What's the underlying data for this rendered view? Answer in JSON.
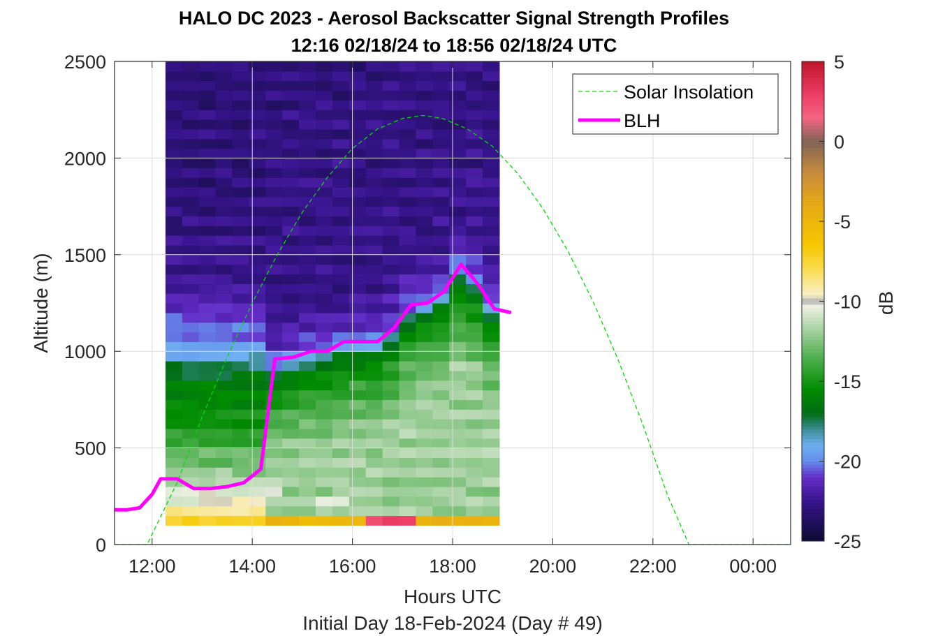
{
  "figure": {
    "title_line1": "HALO DC 2023 - Aerosol Backscatter Signal Strength Profiles",
    "title_line2": "12:16 02/18/24 to 18:56 02/18/24  UTC",
    "footer": "Initial Day 18-Feb-2024 (Day # 49)"
  },
  "chart_data": {
    "type": "heatmap",
    "xlabel": "Hours UTC",
    "ylabel": "Altitude (m)",
    "xlim": [
      11.25,
      24.75
    ],
    "ylim": [
      0,
      2500
    ],
    "grid": true,
    "x_ticks": [
      12,
      14,
      16,
      18,
      20,
      22,
      24
    ],
    "x_tick_labels": [
      "12:00",
      "14:00",
      "16:00",
      "18:00",
      "20:00",
      "22:00",
      "00:00"
    ],
    "y_ticks": [
      0,
      500,
      1000,
      1500,
      2000,
      2500
    ],
    "y_tick_labels": [
      "0",
      "500",
      "1000",
      "1500",
      "2000",
      "2500"
    ],
    "colorbar": {
      "label": "dB",
      "range": [
        -25,
        5
      ],
      "ticks": [
        5,
        0,
        -5,
        -10,
        -15,
        -20,
        -25
      ],
      "tick_labels": [
        "5",
        "0",
        "-5",
        "-10",
        "-15",
        "-20",
        "-25"
      ]
    },
    "heatmap": {
      "x_start": 12.2667,
      "x_end": 18.9333,
      "n_time_bins": 20,
      "altitude_bin_bottoms": [
        100,
        150,
        200,
        250,
        300,
        350,
        400,
        450,
        500,
        550,
        600,
        650,
        700,
        750,
        800,
        850,
        900,
        950,
        1000,
        1050,
        1100,
        1150,
        1200,
        1250,
        1300,
        1350,
        1400,
        1450,
        1500,
        1550,
        1600,
        1650,
        1700,
        1750,
        1800,
        1850,
        1900,
        1950,
        2000,
        2050,
        2100,
        2150,
        2200,
        2250,
        2300,
        2350,
        2400,
        2450
      ],
      "altitude_bin_height": 50,
      "layer_profile_db": [
        [
          0,
          -5
        ],
        [
          150,
          -8
        ],
        [
          220,
          -10
        ],
        [
          300,
          -11
        ],
        [
          400,
          -12.5
        ],
        [
          500,
          -13.5
        ],
        [
          600,
          -15
        ],
        [
          800,
          -16
        ],
        [
          900,
          -17
        ],
        [
          950,
          -18.5
        ],
        [
          1000,
          -19.5
        ],
        [
          1050,
          -20
        ],
        [
          1150,
          -20.5
        ],
        [
          1200,
          -21
        ],
        [
          1250,
          -21.5
        ],
        [
          1400,
          -22.5
        ],
        [
          1800,
          -23
        ],
        [
          2500,
          -23
        ]
      ],
      "blh_boundary_profile_db": [
        [
          -500,
          -12
        ],
        [
          -250,
          -14
        ],
        [
          -100,
          -16
        ],
        [
          -30,
          -18.5
        ],
        [
          0,
          -20
        ],
        [
          60,
          -21
        ],
        [
          250,
          -22.5
        ],
        [
          1500,
          -23
        ]
      ],
      "hot_spots": [
        {
          "x_from": 16.4,
          "x_to": 17.4,
          "alt": 100,
          "db": 3
        },
        {
          "x_from": 12.9,
          "x_to": 13.4,
          "alt": 250,
          "db": -10
        },
        {
          "x_from": 14.3,
          "x_to": 14.6,
          "alt": 250,
          "db": -10
        },
        {
          "x_from": 15.4,
          "x_to": 16.0,
          "alt": 200,
          "db": -10
        }
      ]
    },
    "series": [
      {
        "name": "Solar Insolation",
        "style": "dashed",
        "color": "#00dd00",
        "x": [
          11.25,
          11.9,
          12.5,
          13.0,
          13.5,
          14.0,
          14.5,
          15.0,
          15.5,
          16.0,
          16.5,
          17.0,
          17.4,
          17.8,
          18.3,
          18.8,
          19.3,
          19.8,
          20.3,
          20.8,
          21.3,
          21.8,
          22.3,
          22.72,
          23.5,
          24.75
        ],
        "y": [
          0,
          0,
          320,
          660,
          970,
          1250,
          1500,
          1720,
          1900,
          2050,
          2150,
          2205,
          2220,
          2205,
          2150,
          2060,
          1920,
          1740,
          1520,
          1260,
          960,
          620,
          250,
          0,
          0,
          0
        ]
      },
      {
        "name": "BLH",
        "style": "solid",
        "color": "#ff00ff",
        "x": [
          11.25,
          11.5,
          11.75,
          12.0,
          12.17,
          12.5,
          12.83,
          13.17,
          13.5,
          13.83,
          14.17,
          14.45,
          14.83,
          15.17,
          15.5,
          15.83,
          16.17,
          16.5,
          16.83,
          17.17,
          17.5,
          17.83,
          18.17,
          18.5,
          18.83,
          19.17
        ],
        "y": [
          180,
          180,
          190,
          260,
          340,
          340,
          290,
          290,
          300,
          320,
          390,
          960,
          970,
          1000,
          1000,
          1050,
          1050,
          1050,
          1120,
          1240,
          1250,
          1310,
          1450,
          1350,
          1220,
          1200
        ]
      }
    ],
    "legend": {
      "placement": "top-right",
      "entries": [
        "Solar Insolation",
        "BLH"
      ]
    }
  }
}
